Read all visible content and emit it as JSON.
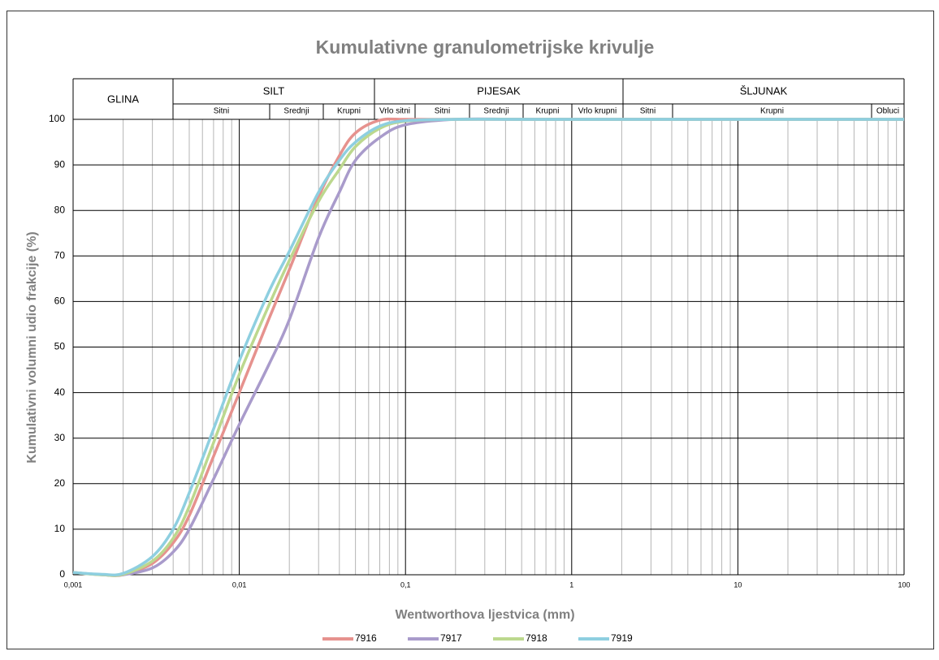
{
  "chart_data": {
    "type": "line",
    "title": "Kumulativne granulometrijske krivulje",
    "x_label": "Wentworthova ljestvica (mm)",
    "y_label": "Kumulativni volumni udio frakcije (%)",
    "header": [
      {
        "name": "GLINA",
        "parts": []
      },
      {
        "name": "SILT",
        "parts": [
          "Sitni",
          "Srednji",
          "Krupni"
        ]
      },
      {
        "name": "PIJESAK",
        "parts": [
          "Vrlo sitni",
          "Sitni",
          "Srednji",
          "Krupni",
          "Vrlo krupni"
        ]
      },
      {
        "name": "ŠLJUNAK",
        "parts": [
          "Sitni",
          "Krupni",
          "Obluci"
        ]
      }
    ],
    "xscale": "log",
    "xlim": [
      0.001,
      100
    ],
    "xticks": [
      {
        "value": 0.001,
        "label": "0,001"
      },
      {
        "value": 0.01,
        "label": "0,01"
      },
      {
        "value": 0.1,
        "label": "0,1"
      },
      1,
      10,
      100
    ],
    "ylim": [
      0,
      100
    ],
    "yticks": [
      0,
      10,
      20,
      30,
      40,
      50,
      60,
      70,
      80,
      90,
      100
    ],
    "grid": true,
    "legend": "bottom",
    "x": [
      0.001,
      0.0015,
      0.002,
      0.003,
      0.004,
      0.005,
      0.007,
      0.01,
      0.015,
      0.02,
      0.03,
      0.04,
      0.05,
      0.07,
      0.1,
      0.2,
      0.5,
      1,
      2,
      10,
      100
    ],
    "series": [
      {
        "name": "7916",
        "color": "#e6928e",
        "values": [
          0.5,
          0,
          0,
          2.5,
          7,
          13,
          26,
          40,
          56,
          67,
          83,
          92,
          97,
          99.8,
          100,
          100,
          100,
          100,
          100,
          100,
          100
        ]
      },
      {
        "name": "7917",
        "color": "#a99bcb",
        "values": [
          0.5,
          0,
          0,
          1.5,
          5,
          10,
          21,
          33,
          46,
          56,
          74,
          84,
          91,
          96,
          98.8,
          100,
          100,
          100,
          100,
          100,
          100
        ]
      },
      {
        "name": "7918",
        "color": "#bcd88e",
        "values": [
          0.5,
          0,
          0.1,
          3,
          8,
          15,
          29,
          44,
          59,
          69,
          82,
          89,
          94,
          98,
          99.6,
          100,
          100,
          100,
          100,
          100,
          100
        ]
      },
      {
        "name": "7919",
        "color": "#8ecfe0",
        "values": [
          0.5,
          0.1,
          0.3,
          4,
          10,
          18,
          32,
          47,
          62,
          71,
          84,
          91,
          95,
          98.5,
          99.7,
          100,
          100,
          100,
          100,
          100,
          100
        ]
      }
    ]
  }
}
